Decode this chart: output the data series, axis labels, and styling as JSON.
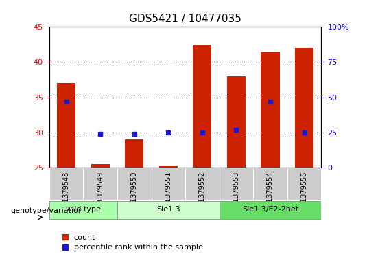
{
  "title": "GDS5421 / 10477035",
  "samples": [
    "GSM1379548",
    "GSM1379549",
    "GSM1379550",
    "GSM1379551",
    "GSM1379552",
    "GSM1379553",
    "GSM1379554",
    "GSM1379555"
  ],
  "counts": [
    37.0,
    25.5,
    29.0,
    25.2,
    42.5,
    38.0,
    41.5,
    42.0
  ],
  "percentiles": [
    47.0,
    24.0,
    24.0,
    25.0,
    25.0,
    27.0,
    47.0,
    25.0
  ],
  "ylim_left": [
    25,
    45
  ],
  "ylim_right": [
    0,
    100
  ],
  "yticks_left": [
    25,
    30,
    35,
    40,
    45
  ],
  "yticks_right": [
    0,
    25,
    50,
    75,
    100
  ],
  "bar_color": "#cc2200",
  "dot_color": "#1a1acc",
  "bar_bottom": 25,
  "genotype_groups": [
    {
      "label": "wild type",
      "start": 0,
      "end": 1,
      "color": "#aaffaa"
    },
    {
      "label": "Sle1.3",
      "start": 2,
      "end": 4,
      "color": "#ccffcc"
    },
    {
      "label": "Sle1.3/E2-2het",
      "start": 5,
      "end": 7,
      "color": "#66dd66"
    }
  ],
  "genotype_label": "genotype/variation",
  "legend_count_label": "count",
  "legend_pct_label": "percentile rank within the sample",
  "title_fontsize": 11,
  "tick_fontsize": 8,
  "bar_width": 0.55,
  "xticklabel_bg": "#cccccc",
  "xticklabel_fontsize": 7
}
